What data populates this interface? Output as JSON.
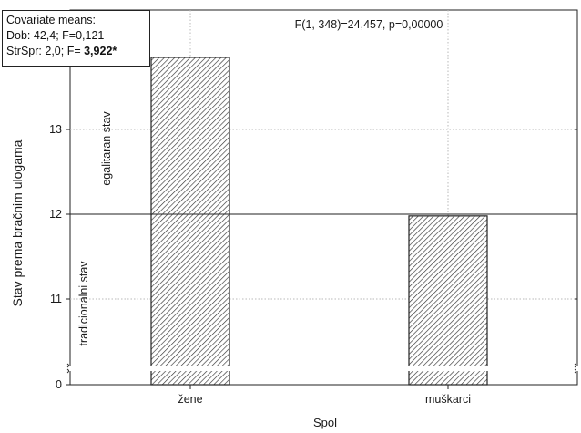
{
  "covariate_box": {
    "title": "Covariate means:",
    "line1": "Dob: 42,4; F=0,121",
    "line2_prefix": "StrSpr: 2,0; F= ",
    "line2_bold": "3,922*"
  },
  "chart_data": {
    "type": "bar",
    "title": "F(1, 348)=24,457, p=0,00000",
    "xlabel": "Spol",
    "ylabel": "Stav prema bračnim ulogama",
    "categories": [
      "žene",
      "muškarci"
    ],
    "values": [
      13.85,
      11.98
    ],
    "y_ticks": [
      "0",
      "11",
      "12",
      "13"
    ],
    "y_tick_values": [
      10.2,
      11,
      12,
      13
    ],
    "ylim": [
      10.0,
      14.3
    ],
    "axis_break": true,
    "grid": true,
    "reference_line": 12,
    "region_labels": {
      "upper": "egalitaran stav",
      "lower": "tradicionalni stav"
    },
    "bar_fill": "hatched"
  }
}
